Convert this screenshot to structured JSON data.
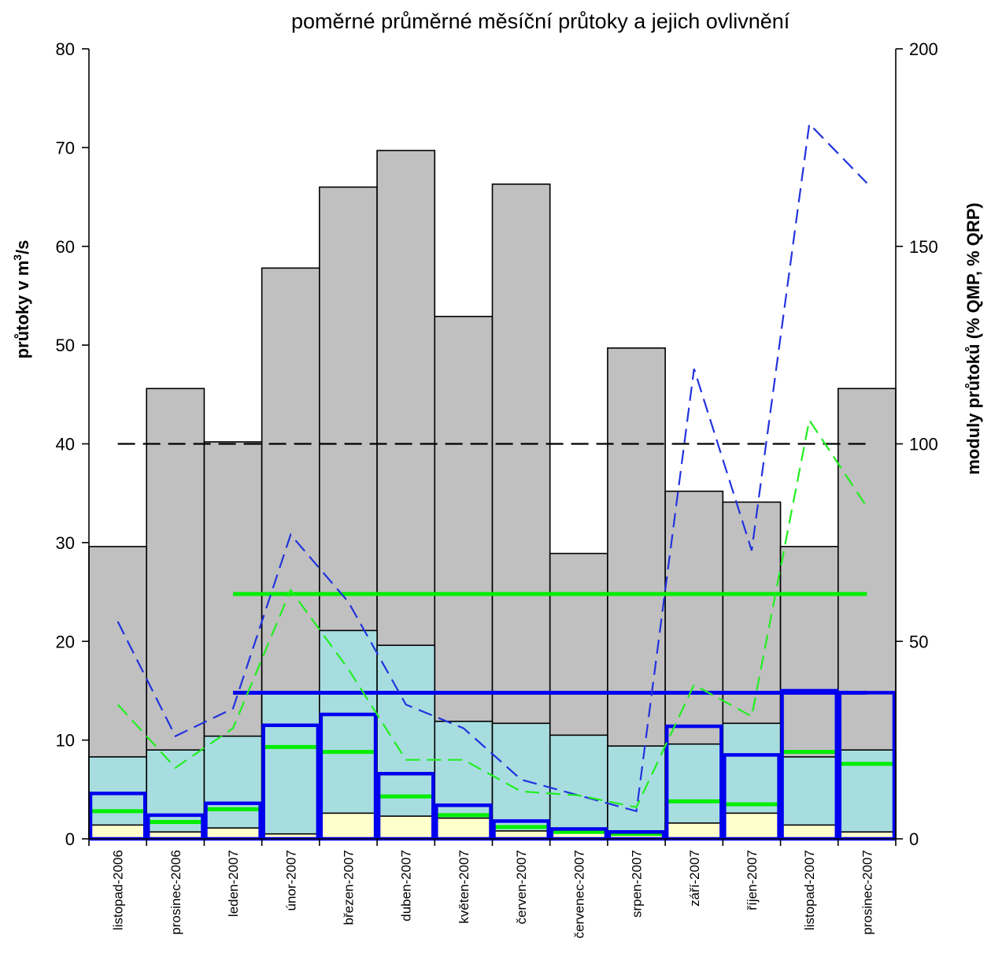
{
  "chart_data": {
    "type": "bar",
    "title": "poměrné průměrné měsíční  průtoky a jejich  ovlivnění",
    "ylabel_left_prefix": "průtoky v m",
    "ylabel_left_sup": "3",
    "ylabel_left_suffix": "/s",
    "ylabel_right": "moduly průtoků (% QMP, % QRP)",
    "ylim_left": [
      0,
      80
    ],
    "ylim_right": [
      0,
      200
    ],
    "yticks_left": [
      0,
      10,
      20,
      30,
      40,
      50,
      60,
      70,
      80
    ],
    "yticks_right": [
      0,
      50,
      100,
      150,
      200
    ],
    "categories": [
      "listopad-2006",
      "prosinec-2006",
      "leden-2007",
      "únor-2007",
      "březen-2007",
      "duben-2007",
      "květen-2007",
      "červen-2007",
      "červenec-2007",
      "srpen-2007",
      "září-2007",
      "říjen-2007",
      "listopad-2007",
      "prosinec-2007"
    ],
    "bar_series": [
      {
        "color": "#c0c0c0",
        "values": [
          29.6,
          45.6,
          40.2,
          57.8,
          66.0,
          69.7,
          52.9,
          66.3,
          28.9,
          49.7,
          35.2,
          34.1,
          29.6,
          45.6
        ]
      },
      {
        "color": "#a8dde0",
        "values": [
          8.3,
          9.0,
          10.4,
          14.8,
          21.1,
          19.6,
          11.9,
          11.7,
          10.5,
          9.4,
          9.6,
          11.7,
          8.3,
          9.0
        ]
      },
      {
        "color": "#ffffcc",
        "values": [
          1.4,
          0.7,
          1.1,
          0.5,
          2.6,
          2.3,
          2.1,
          0.8,
          0.7,
          0.5,
          1.6,
          2.6,
          1.4,
          0.7
        ]
      }
    ],
    "outline_series": {
      "color": "#0000ee",
      "values": [
        4.6,
        2.4,
        3.6,
        11.5,
        12.6,
        6.6,
        3.4,
        1.8,
        1.0,
        0.7,
        11.4,
        8.5,
        15.0,
        14.8
      ]
    },
    "marker_series": {
      "color": "#00ee00",
      "values": [
        2.8,
        1.7,
        3.0,
        9.3,
        8.8,
        4.3,
        2.4,
        1.2,
        0.7,
        0.5,
        3.8,
        3.5,
        8.8,
        7.6
      ]
    },
    "reference_lines": [
      {
        "color": "#000000",
        "dashed": true,
        "from": 0,
        "to": 13,
        "value": 40.0
      },
      {
        "color": "#00ee00",
        "dashed": false,
        "from": 2,
        "to": 13,
        "value": 24.8
      },
      {
        "color": "#0000ee",
        "dashed": false,
        "from": 2,
        "to": 13,
        "value": 14.8
      }
    ],
    "right_axis_lines": [
      {
        "color": "#2233dd",
        "dashed": true,
        "values": [
          55,
          26,
          33,
          77,
          60,
          34,
          28,
          15,
          11,
          7,
          119,
          73,
          181,
          166
        ]
      },
      {
        "color": "#22ee22",
        "dashed": true,
        "values": [
          34,
          18,
          28,
          63,
          43,
          20,
          20,
          12,
          11,
          8,
          39,
          31,
          106,
          84
        ]
      }
    ]
  }
}
